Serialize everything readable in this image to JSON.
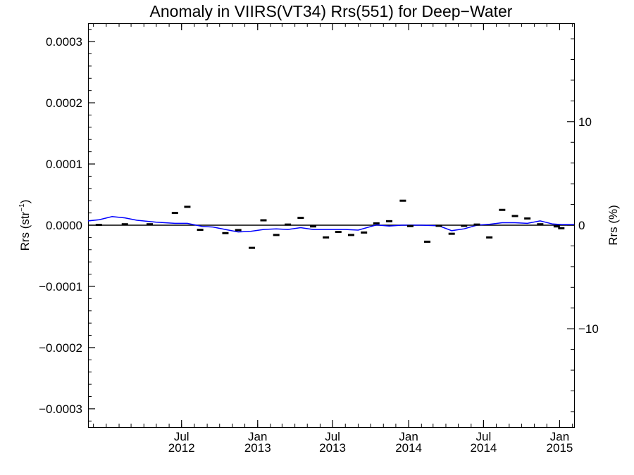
{
  "chart_data": {
    "type": "scatter",
    "title": "Anomaly in VIIRS(VT34) Rrs(551) for Deep−Water",
    "ylabel_left": "Rrs (str",
    "ylabel_left_sup": "−1",
    "ylabel_left_close": ")",
    "ylabel_right": "Rrs (%)",
    "ylim_left": [
      -0.00033,
      0.00033
    ],
    "ylim_right": [
      -19.5,
      19.5
    ],
    "left_ticks": [
      {
        "value": 0.0003,
        "label": "0.0003"
      },
      {
        "value": 0.0002,
        "label": "0.0002"
      },
      {
        "value": 0.0001,
        "label": "0.0001"
      },
      {
        "value": 0.0,
        "label": "0.0000"
      },
      {
        "value": -0.0001,
        "label": "−0.0001"
      },
      {
        "value": -0.0002,
        "label": "−0.0002"
      },
      {
        "value": -0.0003,
        "label": "−0.0003"
      }
    ],
    "right_ticks": [
      {
        "value": 10,
        "label": "10"
      },
      {
        "value": 0,
        "label": "0"
      },
      {
        "value": -10,
        "label": "−10"
      }
    ],
    "x_range": [
      "2011-11-18",
      "2015-02-05"
    ],
    "x_ticks": [
      {
        "date": "2012-07-01",
        "month": "Jul",
        "year": "2012"
      },
      {
        "date": "2013-01-01",
        "month": "Jan",
        "year": "2013"
      },
      {
        "date": "2013-07-01",
        "month": "Jul",
        "year": "2013"
      },
      {
        "date": "2014-01-01",
        "month": "Jan",
        "year": "2014"
      },
      {
        "date": "2014-07-01",
        "month": "Jul",
        "year": "2014"
      },
      {
        "date": "2015-01-01",
        "month": "Jan",
        "year": "2015"
      }
    ],
    "zero_line": 0,
    "series": [
      {
        "kind": "markers",
        "color": "#000000",
        "points": [
          {
            "x": "2011-12-14",
            "y": 5e-07
          },
          {
            "x": "2012-02-15",
            "y": 1.5e-06
          },
          {
            "x": "2012-04-15",
            "y": 1.5e-06
          },
          {
            "x": "2012-06-15",
            "y": 2e-05
          },
          {
            "x": "2012-07-15",
            "y": 3e-05
          },
          {
            "x": "2012-08-15",
            "y": -7.5e-06
          },
          {
            "x": "2012-10-15",
            "y": -1.3e-05
          },
          {
            "x": "2012-11-15",
            "y": -8e-06
          },
          {
            "x": "2012-12-18",
            "y": -3.7e-05
          },
          {
            "x": "2013-01-15",
            "y": 8e-06
          },
          {
            "x": "2013-02-15",
            "y": -1.6e-05
          },
          {
            "x": "2013-03-15",
            "y": 1e-06
          },
          {
            "x": "2013-04-15",
            "y": 1.2e-05
          },
          {
            "x": "2013-05-15",
            "y": -2e-06
          },
          {
            "x": "2013-06-15",
            "y": -2e-05
          },
          {
            "x": "2013-07-15",
            "y": -1.1e-05
          },
          {
            "x": "2013-08-15",
            "y": -1.6e-05
          },
          {
            "x": "2013-09-15",
            "y": -1.2e-05
          },
          {
            "x": "2013-10-15",
            "y": 3e-06
          },
          {
            "x": "2013-11-15",
            "y": 6.5e-06
          },
          {
            "x": "2013-12-18",
            "y": 4e-05
          },
          {
            "x": "2014-01-05",
            "y": -1.5e-06
          },
          {
            "x": "2014-02-15",
            "y": -2.7e-05
          },
          {
            "x": "2014-03-15",
            "y": -1e-06
          },
          {
            "x": "2014-04-15",
            "y": -1.4e-05
          },
          {
            "x": "2014-05-15",
            "y": -1e-06
          },
          {
            "x": "2014-06-15",
            "y": 1e-06
          },
          {
            "x": "2014-07-15",
            "y": -2e-05
          },
          {
            "x": "2014-08-15",
            "y": 2.5e-05
          },
          {
            "x": "2014-09-15",
            "y": 1.5e-05
          },
          {
            "x": "2014-10-15",
            "y": 1.1e-05
          },
          {
            "x": "2014-11-15",
            "y": 1.5e-06
          },
          {
            "x": "2014-12-25",
            "y": -2e-06
          },
          {
            "x": "2015-01-05",
            "y": -5e-06
          }
        ]
      },
      {
        "kind": "line",
        "color": "#0000ff",
        "points": [
          {
            "x": "2011-11-18",
            "y": 7e-06
          },
          {
            "x": "2011-12-15",
            "y": 9e-06
          },
          {
            "x": "2012-01-15",
            "y": 1.4e-05
          },
          {
            "x": "2012-02-15",
            "y": 1.2e-05
          },
          {
            "x": "2012-03-15",
            "y": 8e-06
          },
          {
            "x": "2012-05-01",
            "y": 5e-06
          },
          {
            "x": "2012-06-15",
            "y": 3e-06
          },
          {
            "x": "2012-07-15",
            "y": 3e-06
          },
          {
            "x": "2012-08-20",
            "y": -2e-06
          },
          {
            "x": "2012-09-15",
            "y": -3e-06
          },
          {
            "x": "2012-10-15",
            "y": -7e-06
          },
          {
            "x": "2012-11-15",
            "y": -1.1e-05
          },
          {
            "x": "2012-12-15",
            "y": -1e-05
          },
          {
            "x": "2013-01-15",
            "y": -7e-06
          },
          {
            "x": "2013-02-15",
            "y": -6e-06
          },
          {
            "x": "2013-03-15",
            "y": -7e-06
          },
          {
            "x": "2013-04-15",
            "y": -4e-06
          },
          {
            "x": "2013-05-15",
            "y": -7e-06
          },
          {
            "x": "2013-06-15",
            "y": -7e-06
          },
          {
            "x": "2013-08-01",
            "y": -7e-06
          },
          {
            "x": "2013-09-01",
            "y": -8e-06
          },
          {
            "x": "2013-10-15",
            "y": 5e-07
          },
          {
            "x": "2013-11-15",
            "y": -1.5e-06
          },
          {
            "x": "2013-12-15",
            "y": 0.0
          },
          {
            "x": "2014-02-01",
            "y": 0.0
          },
          {
            "x": "2014-03-15",
            "y": -1e-06
          },
          {
            "x": "2014-04-15",
            "y": -9e-06
          },
          {
            "x": "2014-05-15",
            "y": -6e-06
          },
          {
            "x": "2014-06-15",
            "y": 0.0
          },
          {
            "x": "2014-07-15",
            "y": 1.5e-06
          },
          {
            "x": "2014-08-15",
            "y": 4e-06
          },
          {
            "x": "2014-09-15",
            "y": 4e-06
          },
          {
            "x": "2014-10-15",
            "y": 3e-06
          },
          {
            "x": "2014-11-15",
            "y": 7e-06
          },
          {
            "x": "2014-12-15",
            "y": 2e-06
          },
          {
            "x": "2015-01-05",
            "y": 1e-06
          },
          {
            "x": "2015-02-05",
            "y": 1e-06
          }
        ]
      }
    ]
  }
}
